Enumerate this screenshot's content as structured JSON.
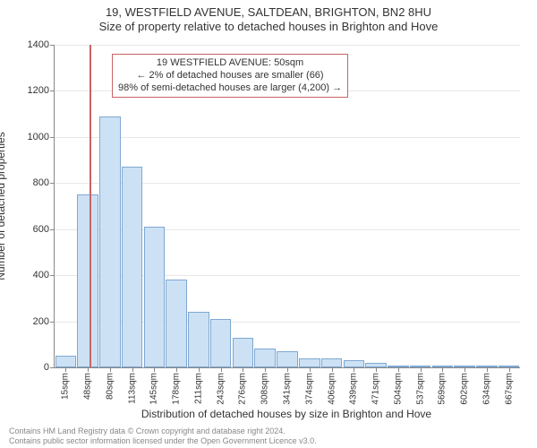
{
  "title": "19, WESTFIELD AVENUE, SALTDEAN, BRIGHTON, BN2 8HU",
  "subtitle": "Size of property relative to detached houses in Brighton and Hove",
  "ylabel": "Number of detached properties",
  "xlabel": "Distribution of detached houses by size in Brighton and Hove",
  "annotation": {
    "line1": "19 WESTFIELD AVENUE: 50sqm",
    "line2": "← 2% of detached houses are smaller (66)",
    "line3": "98% of semi-detached houses are larger (4,200) →"
  },
  "footer": {
    "line1": "Contains HM Land Registry data © Crown copyright and database right 2024.",
    "line2": "Contains public sector information licensed under the Open Government Licence v3.0."
  },
  "chart": {
    "type": "bar",
    "bar_fill": "#cde1f5",
    "bar_stroke": "#7fa8d2",
    "marker_color": "#c86464",
    "grid_color": "#e7e7e7",
    "axis_color": "#888888",
    "background": "#ffffff",
    "text_color": "#333333",
    "tick_fontsize": 11,
    "xtick_fontsize": 10,
    "label_fontsize": 12,
    "title_fontsize": 13,
    "ylim": [
      0,
      1400
    ],
    "ytick_step": 200,
    "yticks": [
      0,
      200,
      400,
      600,
      800,
      1000,
      1200,
      1400
    ],
    "bar_width_ratio": 0.95,
    "marker_x_label": "50sqm",
    "xtick_labels": [
      "15sqm",
      "48sqm",
      "80sqm",
      "113sqm",
      "145sqm",
      "178sqm",
      "211sqm",
      "243sqm",
      "276sqm",
      "308sqm",
      "341sqm",
      "374sqm",
      "406sqm",
      "439sqm",
      "471sqm",
      "504sqm",
      "537sqm",
      "569sqm",
      "602sqm",
      "634sqm",
      "667sqm"
    ],
    "values": [
      50,
      750,
      1090,
      870,
      610,
      380,
      240,
      210,
      130,
      80,
      70,
      40,
      40,
      30,
      20,
      5,
      5,
      3,
      5,
      3,
      3
    ]
  }
}
